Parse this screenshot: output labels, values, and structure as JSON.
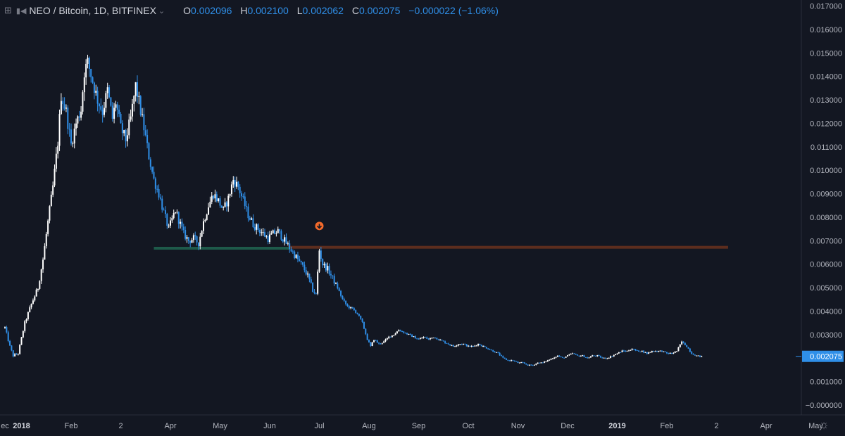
{
  "header": {
    "symbol": "NEO / Bitcoin, 1D, BITFINEX",
    "open_label": "O",
    "open": "0.002096",
    "high_label": "H",
    "high": "0.002100",
    "low_label": "L",
    "low": "0.002062",
    "close_label": "C",
    "close": "0.002075",
    "change": "−0.000022 (−1.06%)"
  },
  "icons": {
    "expand": "expand-icon",
    "bars": "bars-style-icon",
    "chevron": "chevron-down-icon",
    "arrow": "arrow-down-circle-icon",
    "settings": "gear-icon"
  },
  "colors": {
    "background": "#131722",
    "up": "#ffffff",
    "down": "#2f8fe8",
    "resistance": "#5c2d1e",
    "support": "#1e5a4a",
    "marker": "#f36a2b",
    "price_label_bg": "#2f8fe8"
  },
  "chart_data": {
    "type": "candlestick",
    "title": "NEO / Bitcoin, 1D, BITFINEX",
    "ylim": [
      0,
      0.017
    ],
    "y_ticks": [
      "0.017000",
      "0.016000",
      "0.015000",
      "0.014000",
      "0.013000",
      "0.012000",
      "0.011000",
      "0.010000",
      "0.009000",
      "0.008000",
      "0.007000",
      "0.006000",
      "0.005000",
      "0.004000",
      "0.003000",
      "0.002000",
      "0.001000",
      "0.000000"
    ],
    "x_ticks": [
      "ec",
      "2018",
      "Feb",
      "2",
      "Apr",
      "May",
      "Jun",
      "Jul",
      "Aug",
      "Sep",
      "Oct",
      "Nov",
      "Dec",
      "2019",
      "Feb",
      "2",
      "Apr",
      "May"
    ],
    "x_tick_day_index": [
      0,
      10,
      40,
      70,
      100,
      130,
      160,
      190,
      220,
      250,
      280,
      310,
      340,
      370,
      400,
      430,
      460,
      490
    ],
    "bold_ticks": [
      "2018",
      "2019"
    ],
    "close_path_points": [
      [
        0,
        0.0033
      ],
      [
        3,
        0.0025
      ],
      [
        5,
        0.0021
      ],
      [
        8,
        0.0022
      ],
      [
        12,
        0.0035
      ],
      [
        16,
        0.0043
      ],
      [
        20,
        0.005
      ],
      [
        23,
        0.0062
      ],
      [
        26,
        0.0078
      ],
      [
        29,
        0.0093
      ],
      [
        32,
        0.0112
      ],
      [
        34,
        0.0132
      ],
      [
        37,
        0.0125
      ],
      [
        40,
        0.0111
      ],
      [
        43,
        0.012
      ],
      [
        46,
        0.0126
      ],
      [
        48,
        0.0142
      ],
      [
        50,
        0.0146
      ],
      [
        53,
        0.0138
      ],
      [
        56,
        0.013
      ],
      [
        59,
        0.0125
      ],
      [
        62,
        0.0134
      ],
      [
        65,
        0.0122
      ],
      [
        67,
        0.0129
      ],
      [
        70,
        0.0118
      ],
      [
        73,
        0.0113
      ],
      [
        76,
        0.0122
      ],
      [
        79,
        0.0136
      ],
      [
        81,
        0.0129
      ],
      [
        84,
        0.0118
      ],
      [
        87,
        0.0106
      ],
      [
        90,
        0.0096
      ],
      [
        93,
        0.009
      ],
      [
        96,
        0.0082
      ],
      [
        99,
        0.0075
      ],
      [
        101,
        0.0079
      ],
      [
        103,
        0.0083
      ],
      [
        105,
        0.0079
      ],
      [
        108,
        0.0073
      ],
      [
        111,
        0.007
      ],
      [
        114,
        0.0071
      ],
      [
        117,
        0.0069
      ],
      [
        120,
        0.0078
      ],
      [
        123,
        0.0085
      ],
      [
        126,
        0.009
      ],
      [
        129,
        0.0087
      ],
      [
        132,
        0.0083
      ],
      [
        135,
        0.0088
      ],
      [
        138,
        0.0096
      ],
      [
        141,
        0.0093
      ],
      [
        144,
        0.0087
      ],
      [
        147,
        0.0081
      ],
      [
        150,
        0.0077
      ],
      [
        153,
        0.0075
      ],
      [
        156,
        0.0073
      ],
      [
        159,
        0.0071
      ],
      [
        162,
        0.0073
      ],
      [
        165,
        0.0074
      ],
      [
        168,
        0.0071
      ],
      [
        171,
        0.0068
      ],
      [
        174,
        0.0065
      ],
      [
        177,
        0.0062
      ],
      [
        180,
        0.0059
      ],
      [
        183,
        0.0055
      ],
      [
        186,
        0.0049
      ],
      [
        188,
        0.0047
      ],
      [
        190,
        0.0066
      ],
      [
        192,
        0.006
      ],
      [
        195,
        0.0058
      ],
      [
        198,
        0.0054
      ],
      [
        201,
        0.005
      ],
      [
        204,
        0.0045
      ],
      [
        207,
        0.0042
      ],
      [
        210,
        0.0041
      ],
      [
        213,
        0.0039
      ],
      [
        216,
        0.0035
      ],
      [
        219,
        0.0028
      ],
      [
        221,
        0.0025
      ],
      [
        223,
        0.0028
      ],
      [
        226,
        0.0026
      ],
      [
        229,
        0.0027
      ],
      [
        232,
        0.0029
      ],
      [
        235,
        0.003
      ],
      [
        238,
        0.0032
      ],
      [
        241,
        0.0031
      ],
      [
        244,
        0.003
      ],
      [
        247,
        0.0029
      ],
      [
        250,
        0.0028
      ],
      [
        253,
        0.0029
      ],
      [
        256,
        0.0028
      ],
      [
        259,
        0.0029
      ],
      [
        262,
        0.0028
      ],
      [
        265,
        0.0027
      ],
      [
        268,
        0.0026
      ],
      [
        271,
        0.0025
      ],
      [
        274,
        0.0026
      ],
      [
        277,
        0.0026
      ],
      [
        280,
        0.0025
      ],
      [
        283,
        0.0025
      ],
      [
        286,
        0.0026
      ],
      [
        289,
        0.0025
      ],
      [
        292,
        0.0024
      ],
      [
        295,
        0.0023
      ],
      [
        298,
        0.0022
      ],
      [
        301,
        0.002
      ],
      [
        304,
        0.0019
      ],
      [
        307,
        0.0019
      ],
      [
        310,
        0.0018
      ],
      [
        313,
        0.0018
      ],
      [
        316,
        0.0017
      ],
      [
        319,
        0.0017
      ],
      [
        322,
        0.0018
      ],
      [
        325,
        0.0018
      ],
      [
        328,
        0.0019
      ],
      [
        331,
        0.002
      ],
      [
        334,
        0.0021
      ],
      [
        337,
        0.002
      ],
      [
        340,
        0.0021
      ],
      [
        343,
        0.0022
      ],
      [
        346,
        0.0021
      ],
      [
        349,
        0.0021
      ],
      [
        352,
        0.002
      ],
      [
        355,
        0.0021
      ],
      [
        358,
        0.0021
      ],
      [
        361,
        0.002
      ],
      [
        364,
        0.002
      ],
      [
        367,
        0.0021
      ],
      [
        370,
        0.0022
      ],
      [
        373,
        0.0023
      ],
      [
        376,
        0.0023
      ],
      [
        379,
        0.0024
      ],
      [
        382,
        0.0023
      ],
      [
        385,
        0.0023
      ],
      [
        388,
        0.0022
      ],
      [
        391,
        0.0023
      ],
      [
        394,
        0.0023
      ],
      [
        397,
        0.0023
      ],
      [
        400,
        0.0022
      ],
      [
        403,
        0.0022
      ],
      [
        406,
        0.0023
      ],
      [
        409,
        0.0027
      ],
      [
        412,
        0.0025
      ],
      [
        415,
        0.0022
      ],
      [
        418,
        0.0021
      ],
      [
        421,
        0.00207
      ]
    ],
    "horizontal_levels": [
      {
        "name": "resistance",
        "price": 0.00672,
        "from_day": 171,
        "to_day": 437
      },
      {
        "name": "support",
        "price": 0.00668,
        "from_day": 90,
        "to_day": 172
      }
    ],
    "marker": {
      "day": 190,
      "price": 0.00715,
      "label": "sell-signal"
    },
    "last_price": 0.002075,
    "last_price_label": "0.002075"
  }
}
